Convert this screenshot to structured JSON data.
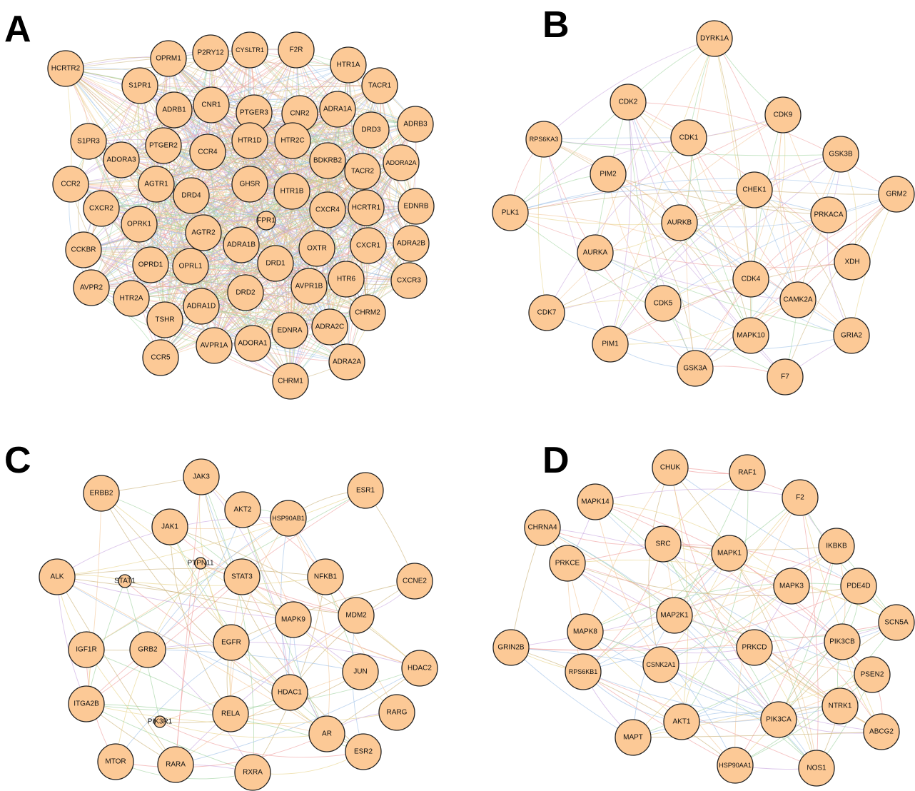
{
  "colors": {
    "node_fill": "#fcc996",
    "node_stroke": "#222222",
    "edge_palette": [
      "#f4c79a",
      "#cbb27a",
      "#9fd39f",
      "#9fc2e8",
      "#f0a0a0",
      "#c9a8e0",
      "#e8d48a"
    ]
  },
  "panels": [
    {
      "letter": "A",
      "nodes": [
        "HCRTR2",
        "OPRM1",
        "P2RY12",
        "CYSLTR1",
        "F2R",
        "HTR1A",
        "S1PR1",
        "TACR1",
        "ADRB1",
        "CNR1",
        "PTGER3",
        "CNR2",
        "ADRA1A",
        "ADRB3",
        "DRD3",
        "S1PR3",
        "PTGER2",
        "HTR1D",
        "HTR2C",
        "ADORA3",
        "CCR4",
        "BDKRB2",
        "ADORA2A",
        "TACR2",
        "CCR2",
        "AGTR1",
        "GHSR",
        "HTR1B",
        "DRD4",
        "EDNRB",
        "CXCR4",
        "HCRTR1",
        "CXCR2",
        "FPR1",
        "OPRK1",
        "AGTR2",
        "ADRA1B",
        "ADRA2B",
        "CXCR1",
        "OXTR",
        "CCKBR",
        "OPRD1",
        "OPRL1",
        "DRD1",
        "CXCR3",
        "AVPR2",
        "HTR6",
        "AVPR1B",
        "DRD2",
        "HTR2A",
        "TSHR",
        "ADRA1D",
        "CHRM2",
        "EDNRA",
        "ADRA2C",
        "AVPR1A",
        "ADORA1",
        "CCR5",
        "ADRA2A",
        "CHRM1"
      ]
    },
    {
      "letter": "B",
      "nodes": [
        "DYRK1A",
        "CDK2",
        "CDK9",
        "CDK1",
        "RPS6KA3",
        "GSK3B",
        "PIM2",
        "CHEK1",
        "GRM2",
        "PLK1",
        "PRKACA",
        "AURKB",
        "AURKA",
        "XDH",
        "CDK4",
        "CAMK2A",
        "CDK5",
        "CDK7",
        "GRIA2",
        "MAPK10",
        "PIM1",
        "GSK3A",
        "F7"
      ]
    },
    {
      "letter": "C",
      "nodes": [
        "JAK3",
        "ESR1",
        "ERBB2",
        "AKT2",
        "HSP90AB1",
        "JAK1",
        "PTPN11",
        "ALK",
        "STAT1",
        "STAT3",
        "NFKB1",
        "CCNE2",
        "MAPK9",
        "MDM2",
        "EGFR",
        "IGF1R",
        "GRB2",
        "JUN",
        "HDAC2",
        "HDAC1",
        "ITGA2B",
        "RARG",
        "RELA",
        "PIK3R1",
        "AR",
        "ESR2",
        "MTOR",
        "RARA",
        "RXRA"
      ]
    },
    {
      "letter": "D",
      "nodes": [
        "CHUK",
        "RAF1",
        "F2",
        "MAPK14",
        "CHRNA4",
        "SRC",
        "MAPK1",
        "IKBKB",
        "PRKCE",
        "PDE4D",
        "MAPK3",
        "MAP2K1",
        "SCN5A",
        "MAPK8",
        "PIK3CB",
        "GRIN2B",
        "PRKCD",
        "CSNK2A1",
        "RPS6KB1",
        "PSEN2",
        "NTRK1",
        "PIK3CA",
        "AKT1",
        "ABCG2",
        "MAPT",
        "HSP90AA1",
        "NOS1"
      ]
    }
  ]
}
